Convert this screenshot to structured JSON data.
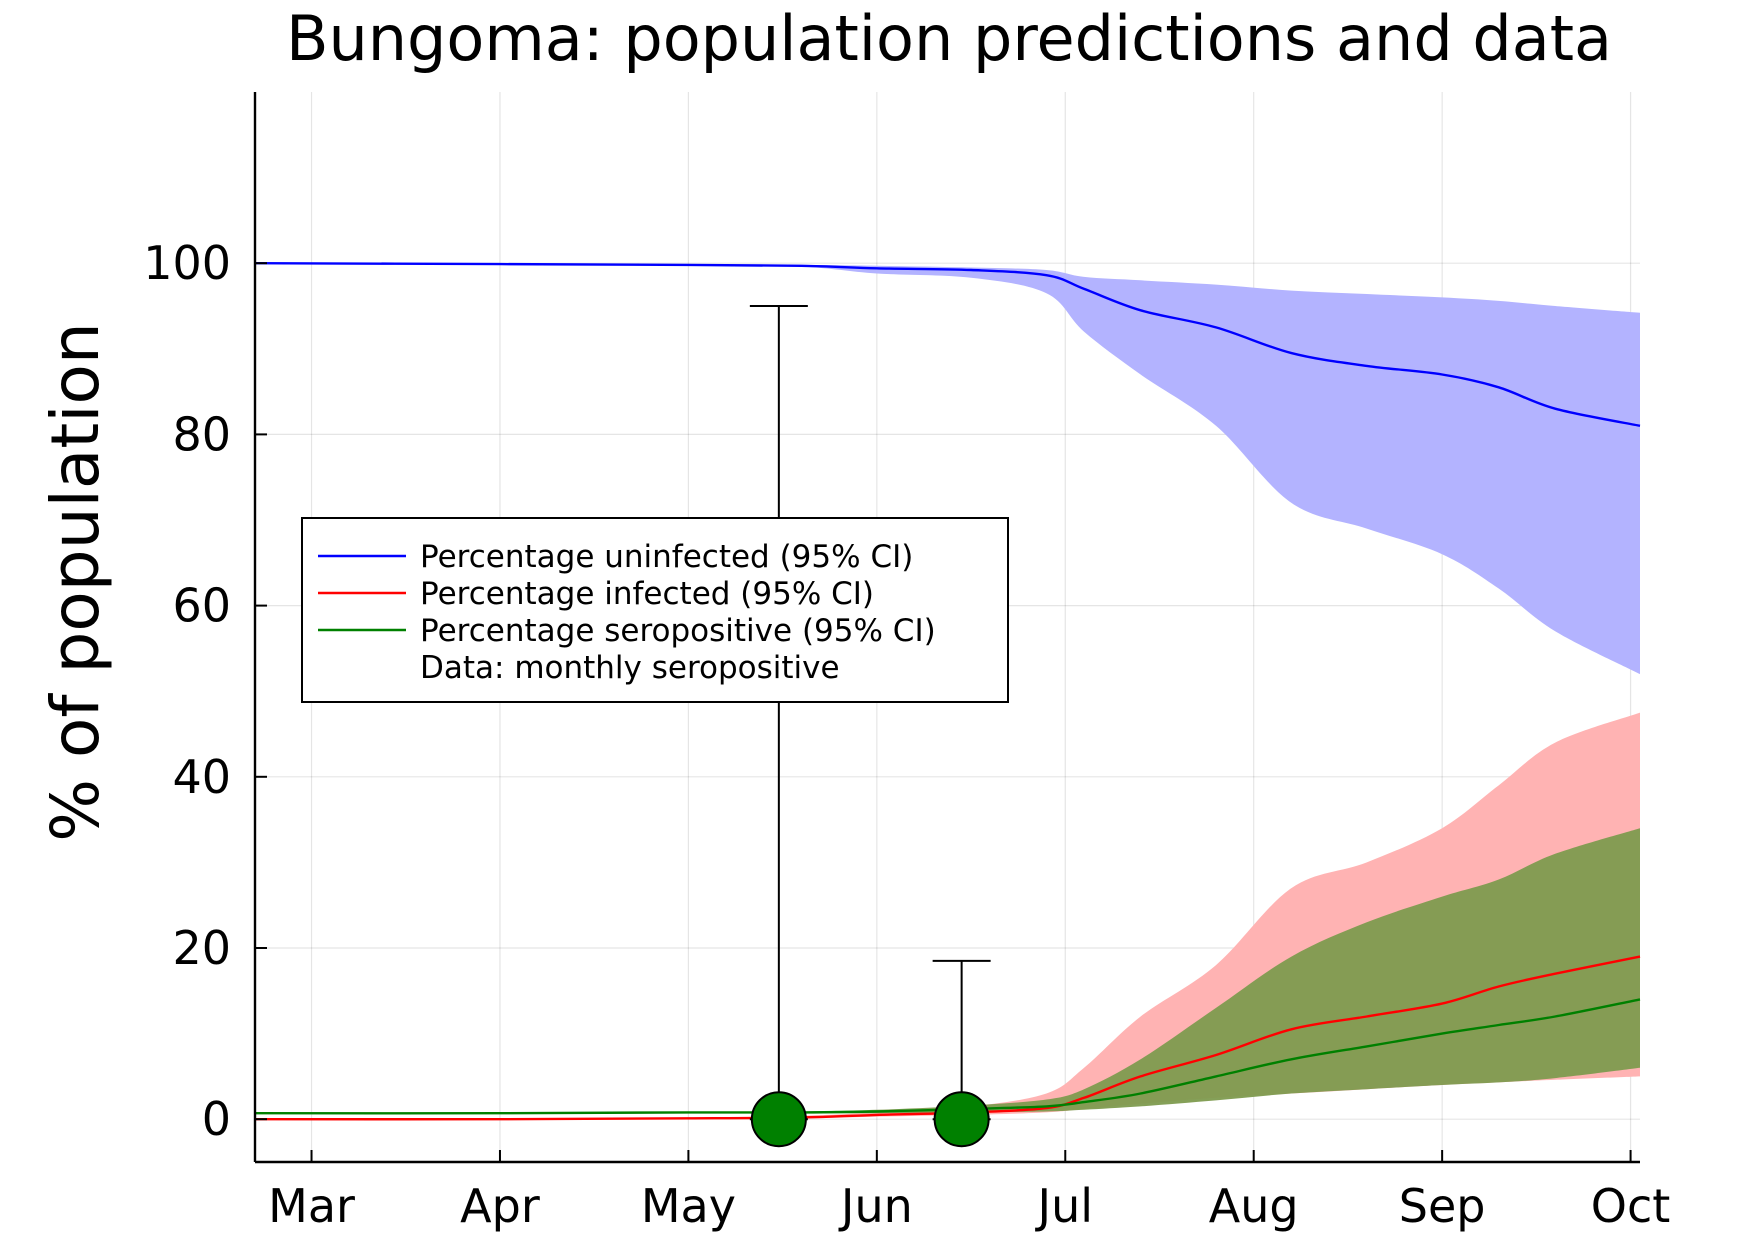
{
  "chart_data": {
    "type": "line",
    "title": "Bungoma: population predictions and data",
    "ylabel": "% of population",
    "xlabel": "",
    "x_dates": [
      "Mar",
      "Apr",
      "May",
      "Jun",
      "Jul",
      "Aug",
      "Sep",
      "Oct"
    ],
    "x_range": [
      -0.3,
      7.05
    ],
    "ylim": [
      -5,
      120
    ],
    "y_ticks": [
      0,
      20,
      40,
      60,
      80,
      100
    ],
    "grid": true,
    "legend_position": "center-left",
    "series": [
      {
        "name": "Percentage uninfected (95% CI)",
        "color": "#0000ff",
        "band_color": "#b3b3ff",
        "x": [
          -0.3,
          1,
          2,
          2.6,
          3,
          3.5,
          3.9,
          4.1,
          4.4,
          4.8,
          5.2,
          5.6,
          6,
          6.3,
          6.6,
          7.05
        ],
        "y": [
          100,
          99.9,
          99.8,
          99.7,
          99.4,
          99.2,
          98.6,
          97,
          94.5,
          92.5,
          89.5,
          88,
          87,
          85.5,
          83,
          81
        ],
        "lower": [
          100,
          99.9,
          99.8,
          99.6,
          98.8,
          98.3,
          96.5,
          92,
          87,
          81,
          72,
          69,
          66,
          62,
          57,
          52
        ],
        "upper": [
          100,
          99.9,
          99.8,
          99.8,
          99.7,
          99.5,
          99.2,
          98.4,
          98,
          97.5,
          96.8,
          96.4,
          96,
          95.6,
          95,
          94.2
        ]
      },
      {
        "name": "Percentage infected (95% CI)",
        "color": "#ff0000",
        "band_color": "#ffb3b3",
        "x": [
          -0.3,
          1,
          2,
          2.6,
          3,
          3.5,
          3.9,
          4.1,
          4.4,
          4.8,
          5.2,
          5.6,
          6,
          6.3,
          6.6,
          7.05
        ],
        "y": [
          0,
          0,
          0.1,
          0.2,
          0.5,
          0.8,
          1.3,
          2.5,
          5,
          7.5,
          10.5,
          12,
          13.5,
          15.5,
          17,
          19
        ],
        "lower": [
          0,
          0,
          0.05,
          0.1,
          0.3,
          0.5,
          0.8,
          1.2,
          1.8,
          2.5,
          3,
          3.5,
          4,
          4.3,
          4.6,
          5
        ],
        "upper": [
          0,
          0,
          0.2,
          0.4,
          0.8,
          1.5,
          3,
          6,
          12,
          18,
          27,
          30,
          34,
          39,
          44,
          47.5
        ]
      },
      {
        "name": "Percentage seropositive (95% CI)",
        "color": "#008000",
        "band_color": "#7e9b4f",
        "x": [
          -0.3,
          1,
          2,
          2.6,
          3,
          3.5,
          3.9,
          4.1,
          4.4,
          4.8,
          5.2,
          5.6,
          6,
          6.3,
          6.6,
          7.05
        ],
        "y": [
          0.7,
          0.7,
          0.8,
          0.8,
          0.9,
          1.2,
          1.5,
          2,
          3,
          5,
          7,
          8.5,
          10,
          11,
          12,
          14
        ],
        "lower": [
          0.7,
          0.7,
          0.7,
          0.7,
          0.7,
          0.8,
          0.9,
          1.1,
          1.5,
          2.2,
          3,
          3.5,
          4,
          4.3,
          4.8,
          6
        ],
        "upper": [
          0.7,
          0.7,
          0.8,
          0.9,
          1.1,
          1.6,
          2.3,
          3.5,
          7,
          13,
          19,
          23,
          26,
          28,
          31,
          34
        ]
      }
    ],
    "data_points": {
      "name": "Data: monthly seropositive",
      "color": "#008000",
      "x": [
        2.48,
        3.45
      ],
      "y": [
        0,
        0
      ],
      "err_upper": [
        95,
        18.5
      ],
      "err_lower": [
        0,
        0
      ]
    }
  }
}
